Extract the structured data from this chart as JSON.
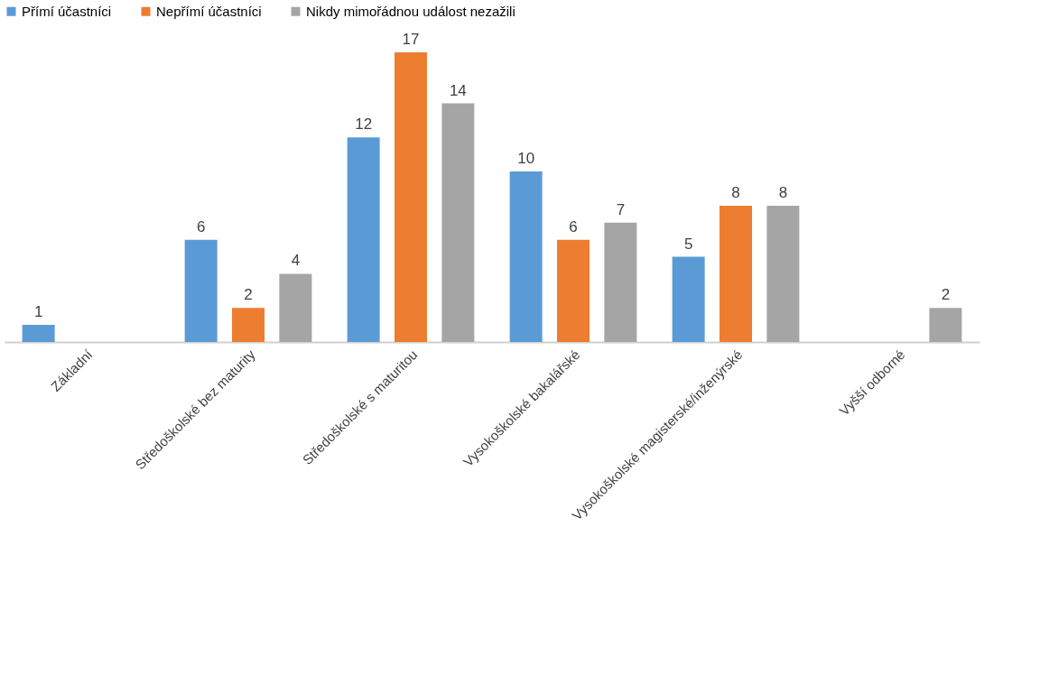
{
  "chart_data": {
    "type": "bar",
    "categories": [
      "Základní",
      "Středoškolské bez maturity",
      "Středoškolské s maturitou",
      "Vysokoškolské bakalářské",
      "Vysokoškolské magisterské/inženýrské",
      "Vyšší odborné"
    ],
    "series": [
      {
        "name": "Přímí účastníci",
        "color": "#5b9bd5",
        "values": [
          1,
          6,
          12,
          10,
          5,
          null
        ]
      },
      {
        "name": "Nepřímí účastníci",
        "color": "#ed7d31",
        "values": [
          null,
          2,
          17,
          6,
          8,
          null
        ]
      },
      {
        "name": "Nikdy mimořádnou událost nezažili",
        "color": "#a5a5a5",
        "values": [
          null,
          4,
          14,
          7,
          8,
          2
        ]
      }
    ],
    "data_labels": true,
    "legend": "top",
    "grid": false
  }
}
